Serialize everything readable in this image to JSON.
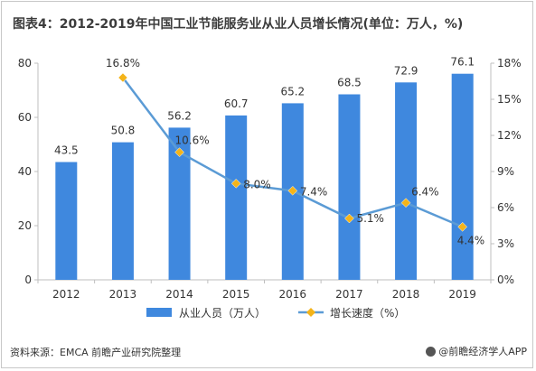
{
  "title": "图表4：2012-2019年中国工业节能服务业从业人员增长情况(单位：万人，%)",
  "source": "资料来源：EMCA 前瞻产业研究院整理",
  "brand": "@前瞻经济学人APP",
  "colors": {
    "bar": "#3f88de",
    "line": "#5b9bd5",
    "marker": "#f4b41a"
  },
  "chart_data": {
    "type": "bar",
    "categories": [
      "2012",
      "2013",
      "2014",
      "2015",
      "2016",
      "2017",
      "2018",
      "2019"
    ],
    "series": [
      {
        "name": "从业人员（万人）",
        "type": "bar",
        "axis": "left",
        "values": [
          43.5,
          50.8,
          56.2,
          60.7,
          65.2,
          68.5,
          72.9,
          76.1
        ],
        "labels": [
          "43.5",
          "50.8",
          "56.2",
          "60.7",
          "65.2",
          "68.5",
          "72.9",
          "76.1"
        ]
      },
      {
        "name": "增长速度（%）",
        "type": "line",
        "axis": "right",
        "values": [
          null,
          16.8,
          10.6,
          8.0,
          7.4,
          5.1,
          6.4,
          4.4
        ],
        "labels": [
          "",
          "16.8%",
          "10.6%",
          "8.0%",
          "7.4%",
          "5.1%",
          "6.4%",
          "4.4%"
        ]
      }
    ],
    "left_axis": {
      "ylim": [
        0,
        80
      ],
      "ticks": [
        "0",
        "20",
        "40",
        "60",
        "80"
      ]
    },
    "right_axis": {
      "ylim": [
        0,
        18
      ],
      "ticks": [
        "0%",
        "3%",
        "6%",
        "9%",
        "12%",
        "15%",
        "18%"
      ]
    },
    "legend": [
      "从业人员（万人）",
      "增长速度（%）"
    ],
    "legend_position": "bottom",
    "grid": false
  }
}
